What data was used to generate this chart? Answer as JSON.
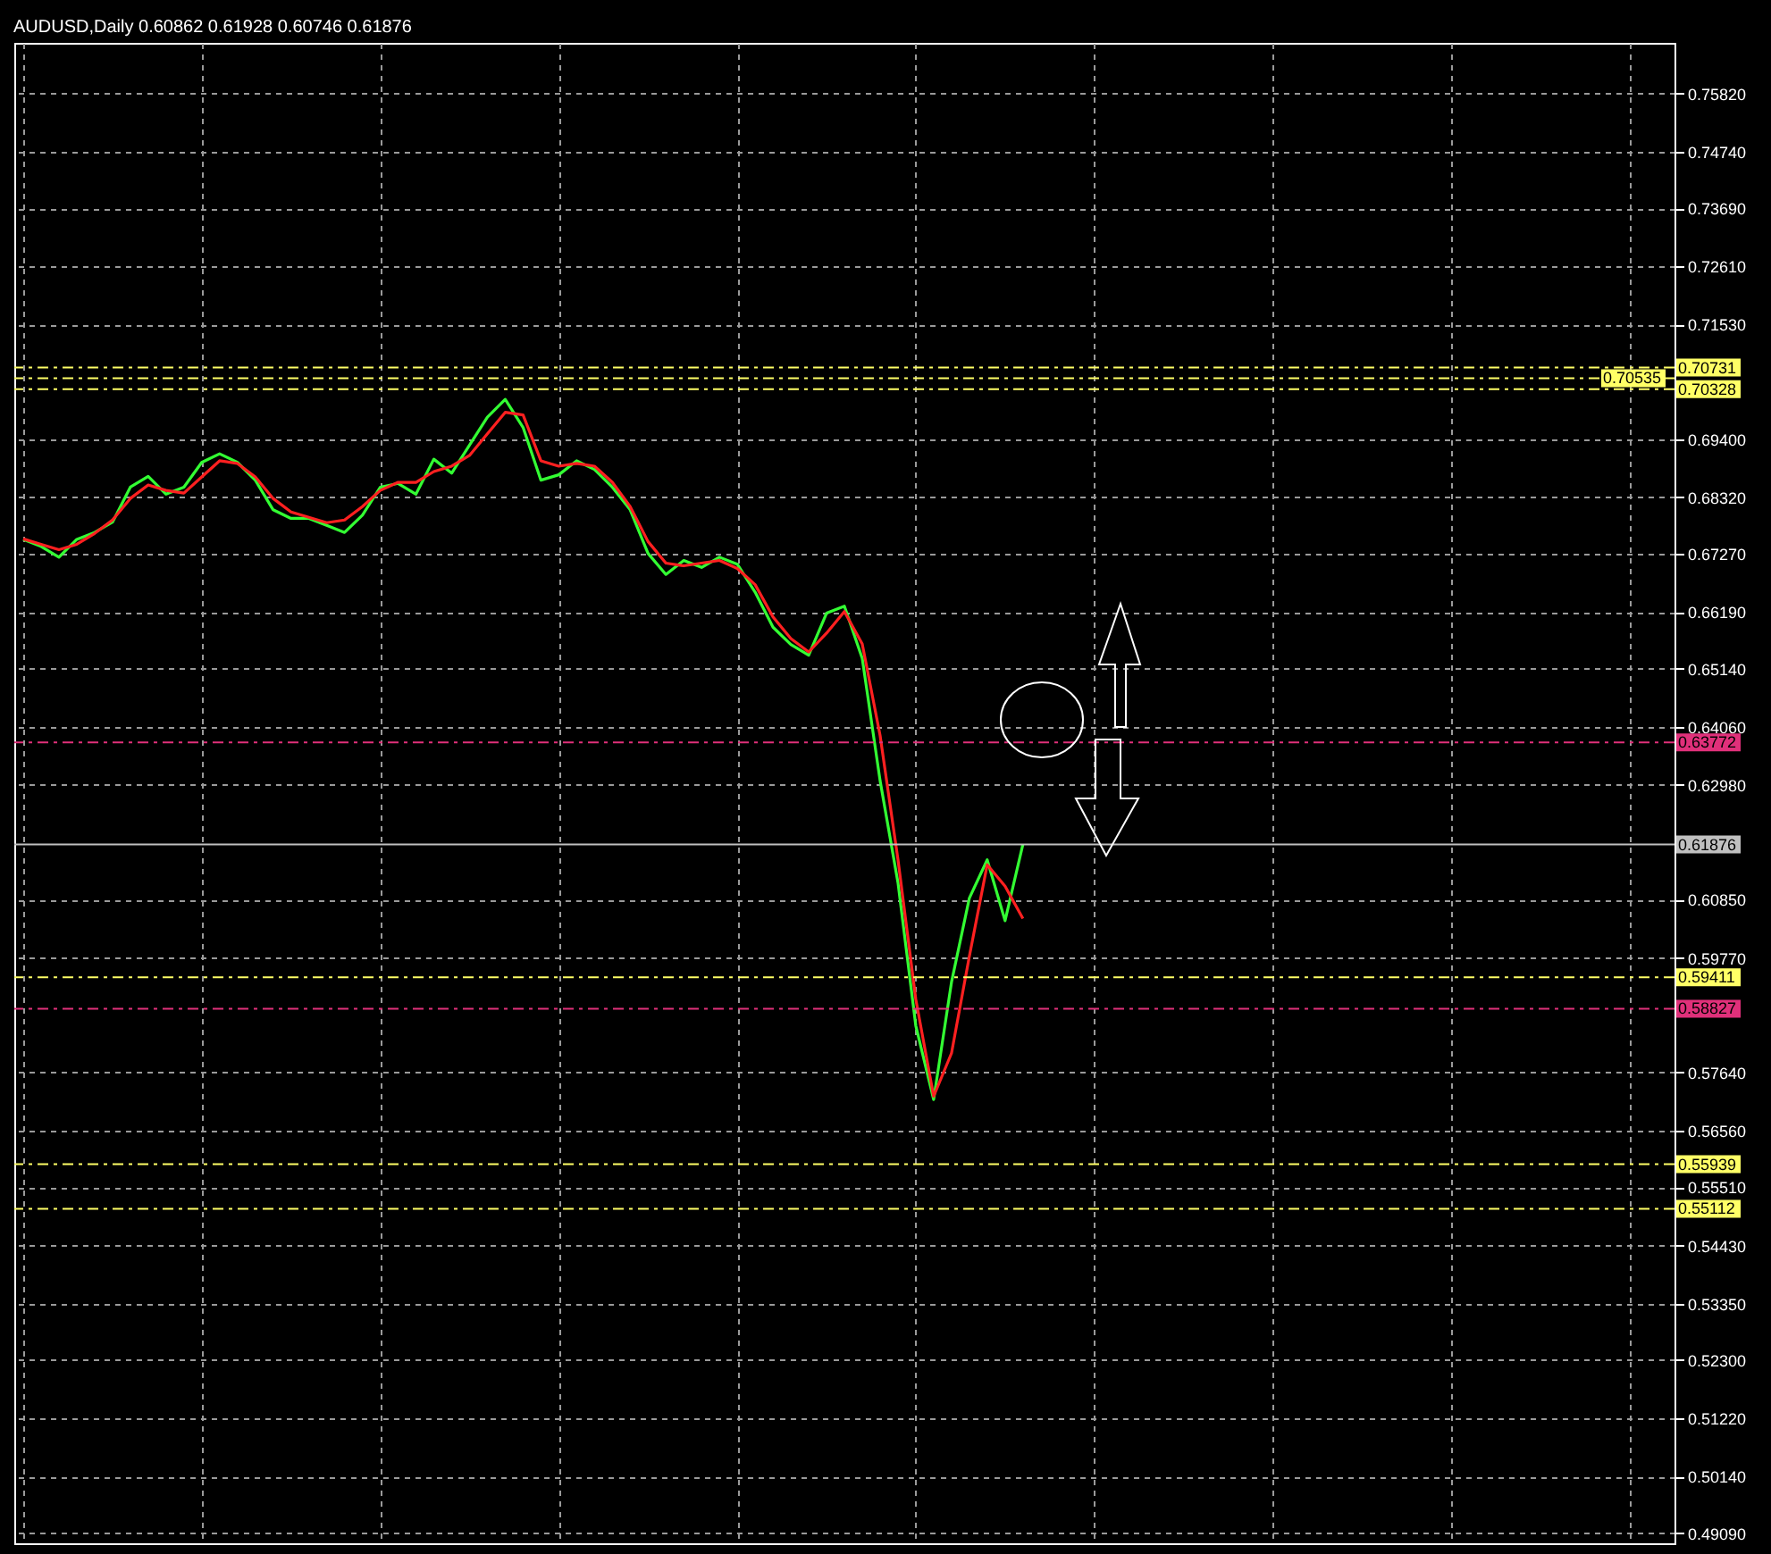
{
  "chart_data": {
    "type": "line",
    "title": "AUDUSD,Daily  0.60862 0.61928 0.60746 0.61876",
    "categories": [
      null,
      null,
      null,
      null,
      null,
      null,
      null,
      null,
      null,
      null,
      null,
      null,
      null,
      null,
      null,
      null,
      null,
      null,
      null,
      null,
      null,
      null,
      null,
      null,
      null,
      null,
      null,
      null,
      null,
      null,
      null,
      null,
      null,
      null,
      null,
      null,
      null,
      null,
      null,
      null,
      null,
      null,
      null,
      null,
      null,
      null,
      null,
      null,
      null,
      null,
      null,
      null,
      null,
      null,
      null,
      null,
      null,
      null,
      null,
      null,
      null,
      null,
      null,
      null,
      null,
      null,
      null,
      null,
      null,
      null,
      null,
      null,
      null,
      null,
      null,
      null,
      null,
      null,
      null,
      null,
      null,
      null,
      null,
      null,
      null,
      null,
      null,
      null,
      null,
      null,
      null,
      null,
      null
    ],
    "series": [
      {
        "color": "#33ff33",
        "values": [
          0.6754,
          0.6741,
          0.6721,
          0.6754,
          0.6767,
          0.6786,
          0.6851,
          0.6871,
          0.6838,
          0.6851,
          0.6897,
          0.6913,
          0.6897,
          0.6864,
          0.6809,
          0.6793,
          0.6793,
          0.678,
          0.6767,
          0.6799,
          0.6851,
          0.6858,
          0.6838,
          0.6903,
          0.6877,
          0.6929,
          0.6981,
          0.7014,
          0.6962,
          0.6864,
          0.6874,
          0.69,
          0.6884,
          0.6851,
          0.6809,
          0.6728,
          0.6689,
          0.6715,
          0.6702,
          0.6721,
          0.6708,
          0.6656,
          0.6591,
          0.6559,
          0.6539,
          0.6617,
          0.663,
          0.6533,
          0.6306,
          0.6117,
          0.5851,
          0.5714,
          0.5932,
          0.6088,
          0.6159,
          0.6046,
          0.6188,
          null,
          null,
          null,
          null,
          null,
          null,
          null,
          null,
          null,
          null,
          null,
          null,
          null,
          null,
          null,
          null,
          null,
          null,
          null,
          null,
          null,
          null,
          null,
          null,
          null,
          null,
          null,
          null,
          null,
          null,
          null,
          null,
          null,
          null,
          null,
          null
        ]
      },
      {
        "color": "#ff2020",
        "values": [
          0.6755,
          0.6745,
          0.6735,
          0.6745,
          0.6765,
          0.679,
          0.683,
          0.6855,
          0.6845,
          0.684,
          0.687,
          0.69,
          0.6895,
          0.687,
          0.683,
          0.6805,
          0.6795,
          0.6785,
          0.679,
          0.6815,
          0.6845,
          0.686,
          0.686,
          0.688,
          0.689,
          0.691,
          0.695,
          0.699,
          0.6985,
          0.69,
          0.689,
          0.6895,
          0.689,
          0.686,
          0.6815,
          0.675,
          0.671,
          0.6705,
          0.671,
          0.6715,
          0.67,
          0.667,
          0.661,
          0.657,
          0.6545,
          0.658,
          0.662,
          0.656,
          0.639,
          0.616,
          0.59,
          0.572,
          0.58,
          0.598,
          0.615,
          0.611,
          0.605,
          null,
          null,
          null,
          null,
          null,
          null,
          null,
          null,
          null,
          null,
          null,
          null,
          null,
          null,
          null,
          null,
          null,
          null,
          null,
          null,
          null,
          null,
          null,
          null,
          null,
          null,
          null,
          null,
          null,
          null,
          null,
          null,
          null,
          null,
          null,
          null
        ]
      }
    ],
    "ylim": [
      0.489,
      0.7676
    ],
    "yticks": [
      {
        "value": 0.7582,
        "label": "0.75820"
      },
      {
        "value": 0.7474,
        "label": "0.74740"
      },
      {
        "value": 0.7369,
        "label": "0.73690"
      },
      {
        "value": 0.7261,
        "label": "0.72610"
      },
      {
        "value": 0.7153,
        "label": "0.71530"
      },
      {
        "value": 0.694,
        "label": "0.69400"
      },
      {
        "value": 0.6832,
        "label": "0.68320"
      },
      {
        "value": 0.6727,
        "label": "0.67270"
      },
      {
        "value": 0.6619,
        "label": "0.66190"
      },
      {
        "value": 0.6514,
        "label": "0.65140"
      },
      {
        "value": 0.6406,
        "label": "0.64060"
      },
      {
        "value": 0.6298,
        "label": "0.62980"
      },
      {
        "value": 0.6085,
        "label": "0.60850"
      },
      {
        "value": 0.5977,
        "label": "0.59770"
      },
      {
        "value": 0.5764,
        "label": "0.57640"
      },
      {
        "value": 0.5656,
        "label": "0.56560"
      },
      {
        "value": 0.5551,
        "label": "0.55510"
      },
      {
        "value": 0.5443,
        "label": "0.54430"
      },
      {
        "value": 0.5335,
        "label": "0.53350"
      },
      {
        "value": 0.523,
        "label": "0.52300"
      },
      {
        "value": 0.5122,
        "label": "0.51220"
      },
      {
        "value": 0.5014,
        "label": "0.50140"
      },
      {
        "value": 0.4909,
        "label": "0.49090"
      }
    ],
    "grid": true,
    "tick_labels": "y",
    "ref_lines": [
      {
        "axis": "y",
        "value": 0.70731,
        "label": "0.70731",
        "color": "#ffff66",
        "line_style": "dashed"
      },
      {
        "axis": "y",
        "value": 0.70535,
        "label": "0.70535",
        "color": "#ffff66",
        "line_style": "dashed"
      },
      {
        "axis": "y",
        "value": 0.70328,
        "label": "0.70328",
        "color": "#ffff66",
        "line_style": "dashed"
      },
      {
        "axis": "y",
        "value": 0.63772,
        "label": "0.63772",
        "color": "#e0307a",
        "line_style": "dashed"
      },
      {
        "axis": "y",
        "value": 0.61876,
        "label": "0.61876",
        "color": "#c0c0c0",
        "line_style": "solid"
      },
      {
        "axis": "y",
        "value": 0.59411,
        "label": "0.59411",
        "color": "#ffff66",
        "line_style": "dashed"
      },
      {
        "axis": "y",
        "value": 0.58827,
        "label": "0.58827",
        "color": "#e0307a",
        "line_style": "dashed"
      },
      {
        "axis": "y",
        "value": 0.55939,
        "label": "0.55939",
        "color": "#ffff66",
        "line_style": "dashed"
      },
      {
        "axis": "y",
        "value": 0.55112,
        "label": "0.55112",
        "color": "#ffff66",
        "line_style": "dashed"
      }
    ]
  }
}
